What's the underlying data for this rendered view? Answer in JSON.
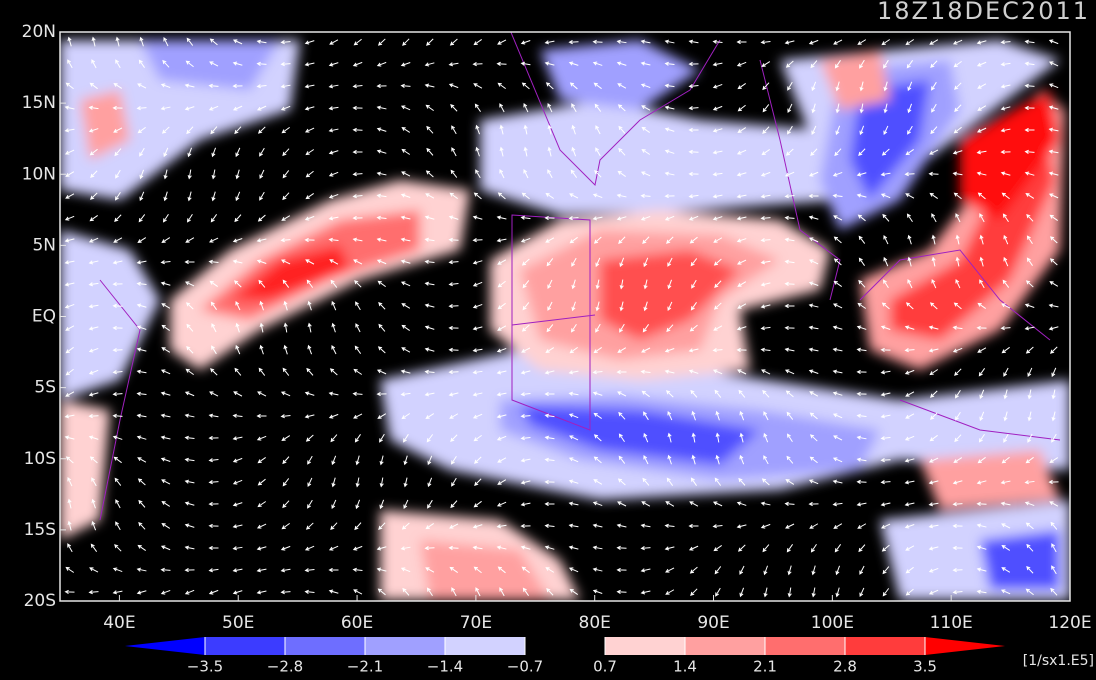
{
  "title": "18Z18DEC2011",
  "map": {
    "xlim": [
      35,
      120
    ],
    "ylim": [
      -20,
      20
    ],
    "xticks": [
      {
        "value": 40,
        "label": "40E"
      },
      {
        "value": 50,
        "label": "50E"
      },
      {
        "value": 60,
        "label": "60E"
      },
      {
        "value": 70,
        "label": "70E"
      },
      {
        "value": 80,
        "label": "80E"
      },
      {
        "value": 90,
        "label": "90E"
      },
      {
        "value": 100,
        "label": "100E"
      },
      {
        "value": 110,
        "label": "110E"
      },
      {
        "value": 120,
        "label": "120E"
      }
    ],
    "yticks": [
      {
        "value": 20,
        "label": "20N"
      },
      {
        "value": 15,
        "label": "15N"
      },
      {
        "value": 10,
        "label": "10N"
      },
      {
        "value": 5,
        "label": "5N"
      },
      {
        "value": 0,
        "label": "EQ"
      },
      {
        "value": -5,
        "label": "5S"
      },
      {
        "value": -10,
        "label": "10S"
      },
      {
        "value": -15,
        "label": "15S"
      },
      {
        "value": -20,
        "label": "20S"
      }
    ]
  },
  "colorbar": {
    "levels": [
      {
        "value": -3.5,
        "label": "−3.5"
      },
      {
        "value": -2.8,
        "label": "−2.8"
      },
      {
        "value": -2.1,
        "label": "−2.1"
      },
      {
        "value": -1.4,
        "label": "−1.4"
      },
      {
        "value": -0.7,
        "label": "−0.7"
      },
      0.7,
      1.4,
      2.1,
      2.8,
      3.5
    ],
    "colors": [
      "#0000ff",
      "#3c3cff",
      "#6e6eff",
      "#a0a0ff",
      "#d2d2ff",
      "#000000",
      "#ffd2d2",
      "#ffa0a0",
      "#ff6e6e",
      "#ff3c3c",
      "#ff0000"
    ],
    "unit": "[1/sx1.E5]"
  }
}
